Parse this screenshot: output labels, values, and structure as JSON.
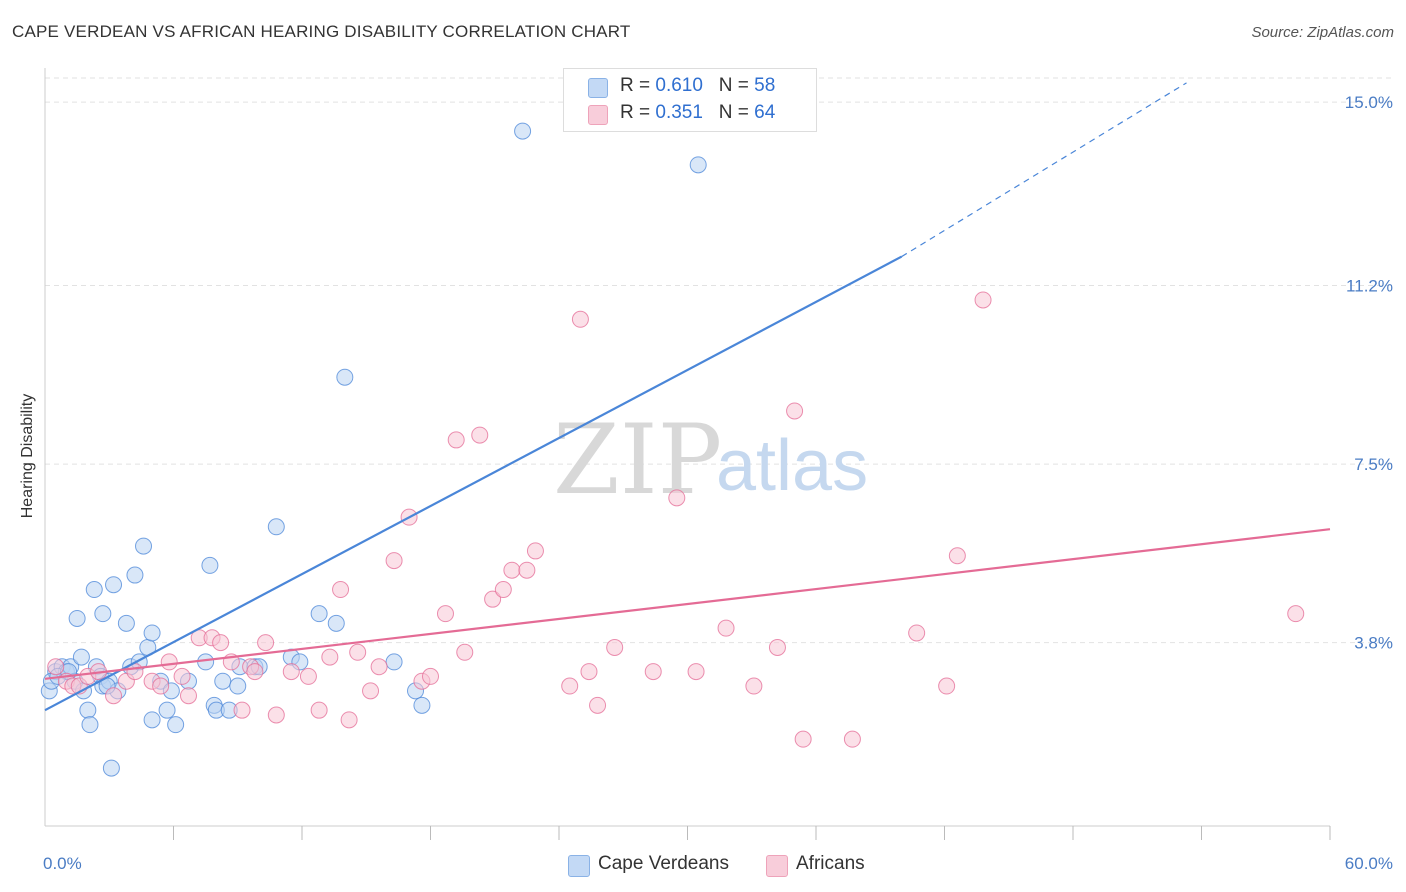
{
  "header": {
    "title": "CAPE VERDEAN VS AFRICAN HEARING DISABILITY CORRELATION CHART",
    "source": "Source: ZipAtlas.com"
  },
  "watermark": {
    "zip": "ZIP",
    "atlas": "atlas"
  },
  "stats": [
    {
      "r_label": "R = ",
      "r_value": "0.610",
      "n_label": "N = ",
      "n_value": "58",
      "color": "#a9c8f0"
    },
    {
      "r_label": "R = ",
      "r_value": "0.351",
      "n_label": "N = ",
      "n_value": "64",
      "color": "#f5b8cb"
    }
  ],
  "legend": [
    {
      "label": "Cape Verdeans",
      "color": "#a9c8f0"
    },
    {
      "label": "Africans",
      "color": "#f5b8cb"
    }
  ],
  "chart_data": {
    "type": "scatter",
    "title": "CAPE VERDEAN VS AFRICAN HEARING DISABILITY CORRELATION CHART",
    "xlabel": "",
    "ylabel": "Hearing Disability",
    "xlim": [
      0,
      60
    ],
    "ylim": [
      0,
      15.5
    ],
    "x_tick_labels": [
      "0.0%",
      "60.0%"
    ],
    "x_tick_values": [
      0,
      60
    ],
    "x_minor_ticks": [
      6,
      12,
      18,
      24,
      30,
      36,
      42,
      48,
      54,
      60
    ],
    "y_tick_labels": [
      "3.8%",
      "7.5%",
      "11.2%",
      "15.0%"
    ],
    "y_tick_values": [
      3.8,
      7.5,
      11.2,
      15.0
    ],
    "grid": true,
    "series": [
      {
        "name": "Cape Verdeans",
        "color": "#4a86d8",
        "fill": "#b9d3f2",
        "r": 0.61,
        "n": 58,
        "trend": {
          "x0": 0,
          "y0": 2.4,
          "x1": 40,
          "y1": 11.8,
          "dashed_to_x": 53.3,
          "dashed_to_y": 15.4
        },
        "points": [
          [
            0.2,
            2.8
          ],
          [
            0.5,
            3.2
          ],
          [
            0.3,
            3.0
          ],
          [
            0.8,
            3.3
          ],
          [
            1.0,
            3.2
          ],
          [
            1.2,
            3.3
          ],
          [
            1.4,
            3.0
          ],
          [
            1.5,
            4.3
          ],
          [
            1.7,
            3.5
          ],
          [
            1.8,
            2.8
          ],
          [
            2.0,
            2.4
          ],
          [
            2.1,
            2.1
          ],
          [
            2.3,
            4.9
          ],
          [
            2.4,
            3.3
          ],
          [
            2.6,
            3.1
          ],
          [
            2.7,
            4.4
          ],
          [
            2.7,
            2.9
          ],
          [
            3.0,
            3.0
          ],
          [
            3.2,
            5.0
          ],
          [
            3.4,
            2.8
          ],
          [
            3.8,
            4.2
          ],
          [
            4.0,
            3.3
          ],
          [
            4.2,
            5.2
          ],
          [
            4.4,
            3.4
          ],
          [
            4.6,
            5.8
          ],
          [
            4.8,
            3.7
          ],
          [
            5.0,
            4.0
          ],
          [
            5.0,
            2.2
          ],
          [
            5.4,
            3.0
          ],
          [
            5.7,
            2.4
          ],
          [
            5.9,
            2.8
          ],
          [
            6.1,
            2.1
          ],
          [
            6.7,
            3.0
          ],
          [
            7.5,
            3.4
          ],
          [
            7.7,
            5.4
          ],
          [
            7.9,
            2.5
          ],
          [
            8.0,
            2.4
          ],
          [
            8.3,
            3.0
          ],
          [
            8.6,
            2.4
          ],
          [
            9.0,
            2.9
          ],
          [
            9.1,
            3.3
          ],
          [
            9.8,
            3.3
          ],
          [
            10.0,
            3.3
          ],
          [
            10.8,
            6.2
          ],
          [
            11.5,
            3.5
          ],
          [
            11.9,
            3.4
          ],
          [
            12.8,
            4.4
          ],
          [
            13.6,
            4.2
          ],
          [
            14.0,
            9.3
          ],
          [
            16.3,
            3.4
          ],
          [
            17.3,
            2.8
          ],
          [
            17.6,
            2.5
          ],
          [
            3.1,
            1.2
          ],
          [
            22.3,
            14.4
          ],
          [
            30.5,
            13.7
          ],
          [
            0.6,
            3.1
          ],
          [
            1.1,
            3.2
          ],
          [
            2.9,
            2.9
          ]
        ]
      },
      {
        "name": "Africans",
        "color": "#e46b95",
        "fill": "#f7c6d5",
        "r": 0.351,
        "n": 64,
        "trend": {
          "x0": 0,
          "y0": 3.05,
          "x1": 60,
          "y1": 6.15
        },
        "points": [
          [
            0.5,
            3.3
          ],
          [
            1.0,
            3.0
          ],
          [
            1.3,
            2.9
          ],
          [
            1.6,
            2.9
          ],
          [
            2.0,
            3.1
          ],
          [
            2.5,
            3.2
          ],
          [
            3.2,
            2.7
          ],
          [
            3.8,
            3.0
          ],
          [
            4.2,
            3.2
          ],
          [
            5.0,
            3.0
          ],
          [
            5.4,
            2.9
          ],
          [
            5.8,
            3.4
          ],
          [
            6.4,
            3.1
          ],
          [
            6.7,
            2.7
          ],
          [
            7.2,
            3.9
          ],
          [
            7.8,
            3.9
          ],
          [
            8.2,
            3.8
          ],
          [
            8.7,
            3.4
          ],
          [
            9.2,
            2.4
          ],
          [
            9.6,
            3.3
          ],
          [
            9.8,
            3.2
          ],
          [
            10.3,
            3.8
          ],
          [
            10.8,
            2.3
          ],
          [
            11.5,
            3.2
          ],
          [
            12.3,
            3.1
          ],
          [
            12.8,
            2.4
          ],
          [
            13.3,
            3.5
          ],
          [
            13.8,
            4.9
          ],
          [
            14.2,
            2.2
          ],
          [
            14.6,
            3.6
          ],
          [
            15.2,
            2.8
          ],
          [
            15.6,
            3.3
          ],
          [
            16.3,
            5.5
          ],
          [
            17.0,
            6.4
          ],
          [
            17.6,
            3.0
          ],
          [
            18.0,
            3.1
          ],
          [
            18.7,
            4.4
          ],
          [
            19.2,
            8.0
          ],
          [
            19.6,
            3.6
          ],
          [
            20.3,
            8.1
          ],
          [
            20.9,
            4.7
          ],
          [
            21.4,
            4.9
          ],
          [
            21.8,
            5.3
          ],
          [
            22.5,
            5.3
          ],
          [
            22.9,
            5.7
          ],
          [
            24.5,
            2.9
          ],
          [
            25.0,
            10.5
          ],
          [
            25.4,
            3.2
          ],
          [
            25.8,
            2.5
          ],
          [
            26.6,
            3.7
          ],
          [
            28.4,
            3.2
          ],
          [
            29.5,
            6.8
          ],
          [
            30.4,
            3.2
          ],
          [
            31.8,
            4.1
          ],
          [
            33.1,
            2.9
          ],
          [
            34.2,
            3.7
          ],
          [
            35.0,
            8.6
          ],
          [
            35.4,
            1.8
          ],
          [
            37.7,
            1.8
          ],
          [
            40.7,
            4.0
          ],
          [
            42.1,
            2.9
          ],
          [
            42.6,
            5.6
          ],
          [
            43.8,
            10.9
          ],
          [
            58.4,
            4.4
          ]
        ]
      }
    ]
  }
}
